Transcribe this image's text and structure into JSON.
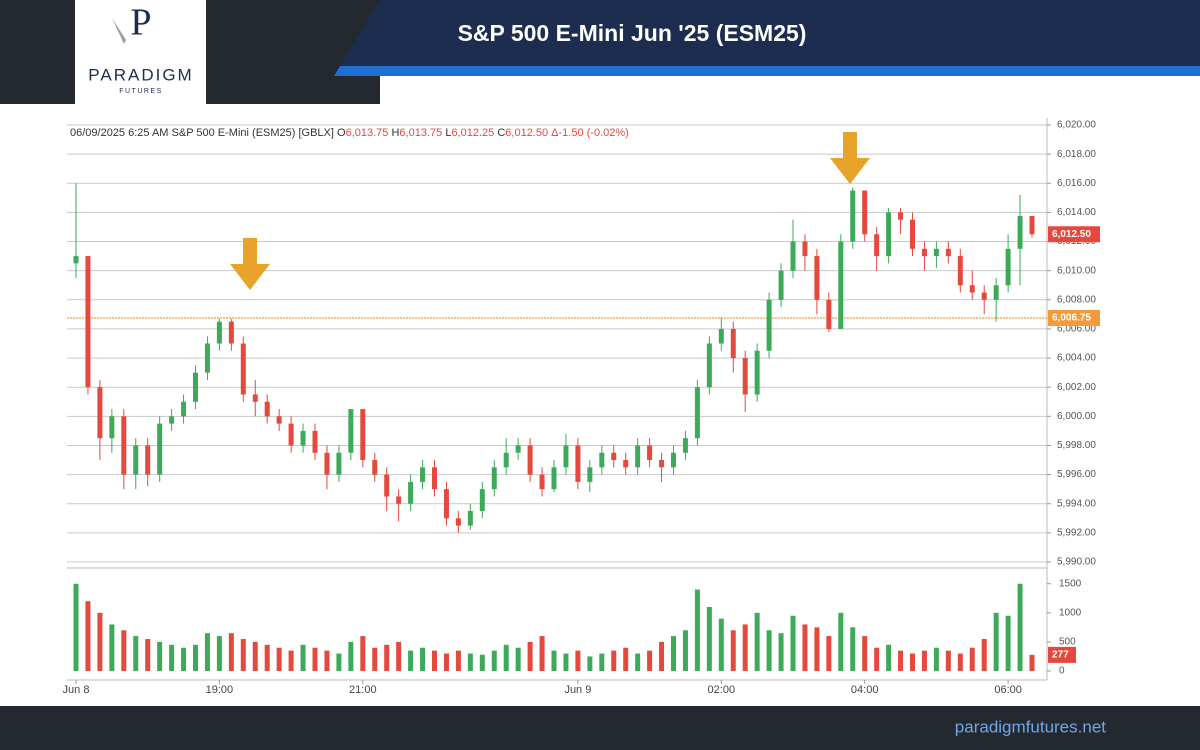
{
  "header": {
    "title": "S&P 500 E-Mini Jun '25 (ESM25)",
    "brand": "PARADIGM",
    "brand_sub": "FUTURES"
  },
  "footer": {
    "url": "paradigmfutures.net"
  },
  "chart_data": {
    "type": "candlestick",
    "legend_text": {
      "prefix": "06/09/2025  6:25 AM S&P 500 E-Mini (ESM25) [GBLX]",
      "items": [
        {
          "key": "O",
          "value": 6013.75,
          "label": "6,013.75"
        },
        {
          "key": "H",
          "value": 6013.75,
          "label": "6,013.75"
        },
        {
          "key": "L",
          "value": 6012.25,
          "label": "6,012.25"
        },
        {
          "key": "C",
          "value": 6012.5,
          "label": "6,012.50"
        }
      ],
      "change": "Δ-1.50 (-0.02%)"
    },
    "up_color": "#3daa5a",
    "down_color": "#e5483c",
    "categories": [
      "Jun 8",
      null,
      null,
      null,
      null,
      null,
      null,
      null,
      null,
      null,
      null,
      null,
      "19:00",
      null,
      null,
      null,
      null,
      null,
      null,
      null,
      null,
      null,
      null,
      null,
      "21:00",
      null,
      null,
      null,
      null,
      null,
      null,
      null,
      null,
      null,
      null,
      null,
      null,
      null,
      null,
      null,
      null,
      null,
      "Jun 9",
      null,
      null,
      null,
      null,
      null,
      null,
      null,
      null,
      null,
      null,
      null,
      "02:00",
      null,
      null,
      null,
      null,
      null,
      null,
      null,
      null,
      null,
      null,
      null,
      "04:00",
      null,
      null,
      null,
      null,
      null,
      null,
      null,
      null,
      null,
      null,
      null,
      "06:00",
      null,
      null
    ],
    "open": [
      6010.5,
      6011,
      6002,
      5998.5,
      6000,
      5996,
      5998,
      5996,
      5999.5,
      6000,
      6001,
      6003,
      6005,
      6006.5,
      6005,
      6001.5,
      6001,
      6000,
      5999.5,
      5998,
      5999,
      5997.5,
      5996,
      5997.5,
      6000.5,
      5997,
      5996,
      5994.5,
      5994,
      5995.5,
      5996.5,
      5995,
      5993,
      5992.5,
      5993.5,
      5995,
      5996.5,
      5997.5,
      5998,
      5996,
      5995,
      5996.5,
      5998,
      5995.5,
      5996.5,
      5997.5,
      5997,
      5996.5,
      5998,
      5997,
      5996.5,
      5997.5,
      5998.5,
      6002,
      6005,
      6006,
      6004,
      6001.5,
      6004.5,
      6008,
      6010,
      6012,
      6011,
      6008,
      6006,
      6012,
      6015.5,
      6012.5,
      6011,
      6014,
      6013.5,
      6011.5,
      6011,
      6011.5,
      6011,
      6009,
      6008.5,
      6008,
      6009,
      6011.5,
      6013.75
    ],
    "high": [
      6016,
      6011,
      6002.5,
      6000.5,
      6000.5,
      5998.5,
      5998.5,
      6000,
      6000.5,
      6001.5,
      6003.5,
      6005.5,
      6006.7,
      6006.7,
      6005.5,
      6002.5,
      6001.5,
      6000.5,
      6000,
      5999.5,
      5999.5,
      5998,
      5998,
      6000.5,
      6000.5,
      5997.5,
      5996.5,
      5995,
      5996,
      5997,
      5997,
      5995.5,
      5993.5,
      5994,
      5995.5,
      5997,
      5998.5,
      5998.5,
      5998.5,
      5996.5,
      5997,
      5998.8,
      5998.5,
      5997,
      5998,
      5998,
      5997.5,
      5998.5,
      5998.5,
      5997.5,
      5998,
      5999,
      6002.5,
      6005.5,
      6006.8,
      6006.5,
      6004.5,
      6005,
      6008.5,
      6010.5,
      6013.5,
      6012.5,
      6011.5,
      6008.5,
      6012.5,
      6015.7,
      6015.5,
      6013,
      6014.3,
      6014.3,
      6014,
      6012,
      6012,
      6012,
      6011.5,
      6010,
      6009,
      6009.5,
      6012.5,
      6015.2,
      6013.75
    ],
    "low": [
      6009.5,
      6001.5,
      5997,
      5997.5,
      5995,
      5995,
      5995.2,
      5995.5,
      5999,
      5999.5,
      6000.5,
      6002.5,
      6004.5,
      6004.5,
      6001,
      6000,
      5999.5,
      5999,
      5997.5,
      5997.5,
      5997,
      5995,
      5995.5,
      5997,
      5996.5,
      5995.5,
      5993.5,
      5992.8,
      5993.5,
      5995,
      5994.5,
      5992.5,
      5992,
      5992.2,
      5993,
      5994.5,
      5996,
      5997,
      5995.5,
      5994.5,
      5994.8,
      5996,
      5995,
      5994.8,
      5996,
      5996.5,
      5996,
      5996,
      5996.5,
      5995.5,
      5996,
      5997,
      5998,
      6001.5,
      6004.5,
      6003,
      6000.3,
      6001,
      6004,
      6007.5,
      6009.5,
      6010,
      6007,
      6005.8,
      6006,
      6011.5,
      6012,
      6010,
      6010.5,
      6012.5,
      6011,
      6010,
      6010.2,
      6010.5,
      6008.5,
      6008,
      6007,
      6006.5,
      6008.5,
      6009,
      6012.25
    ],
    "close": [
      6011,
      6002,
      5998.5,
      6000,
      5996,
      5998,
      5996,
      5999.5,
      6000,
      6001,
      6003,
      6005,
      6006.5,
      6005,
      6001.5,
      6001,
      6000,
      5999.5,
      5998,
      5999,
      5997.5,
      5996,
      5997.5,
      6000.5,
      5997,
      5996,
      5994.5,
      5994,
      5995.5,
      5996.5,
      5995,
      5993,
      5992.5,
      5993.5,
      5995,
      5996.5,
      5997.5,
      5998,
      5996,
      5995,
      5996.5,
      5998,
      5995.5,
      5996.5,
      5997.5,
      5997,
      5996.5,
      5998,
      5997,
      5996.5,
      5997.5,
      5998.5,
      6002,
      6005,
      6006,
      6004,
      6001.5,
      6004.5,
      6008,
      6010,
      6012,
      6011,
      6008,
      6006,
      6012,
      6015.5,
      6012.5,
      6011,
      6014,
      6013.5,
      6011.5,
      6011,
      6011.5,
      6011,
      6009,
      6008.5,
      6008,
      6009,
      6011.5,
      6013.75,
      6012.5
    ],
    "ylim": [
      5990,
      6020
    ],
    "yticks": [
      {
        "value": 5990,
        "label": "5,990.00"
      },
      {
        "value": 5992,
        "label": "5,992.00"
      },
      {
        "value": 5994,
        "label": "5,994.00"
      },
      {
        "value": 5996,
        "label": "5,996.00"
      },
      {
        "value": 5998,
        "label": "5,998.00"
      },
      {
        "value": 6000,
        "label": "6,000.00"
      },
      {
        "value": 6002,
        "label": "6,002.00"
      },
      {
        "value": 6004,
        "label": "6,004.00"
      },
      {
        "value": 6006,
        "label": "6,006.00"
      },
      {
        "value": 6008,
        "label": "6,008.00"
      },
      {
        "value": 6010,
        "label": "6,010.00"
      },
      {
        "value": 6012,
        "label": "6,012.00"
      },
      {
        "value": 6014,
        "label": "6,014.00"
      },
      {
        "value": 6016,
        "label": "6,016.00"
      },
      {
        "value": 6018,
        "label": "6,018.00"
      },
      {
        "value": 6020,
        "label": "6,020.00"
      }
    ],
    "grid": true,
    "last_price": {
      "value": 6012.5,
      "label": "6,012.50",
      "color": "#e5483c"
    },
    "level": {
      "value": 6006.75,
      "label": "6,006.75",
      "color": "#f39a3a"
    },
    "volume": {
      "values": [
        1500,
        1200,
        1000,
        800,
        700,
        600,
        550,
        500,
        450,
        400,
        450,
        650,
        600,
        650,
        550,
        500,
        450,
        400,
        350,
        450,
        400,
        350,
        300,
        500,
        600,
        400,
        450,
        500,
        350,
        400,
        350,
        300,
        350,
        300,
        280,
        350,
        450,
        400,
        500,
        600,
        350,
        300,
        350,
        250,
        300,
        350,
        400,
        300,
        350,
        500,
        600,
        700,
        1400,
        1100,
        900,
        700,
        800,
        1000,
        700,
        650,
        950,
        800,
        750,
        600,
        1000,
        750,
        600,
        400,
        450,
        350,
        300,
        350,
        400,
        350,
        300,
        400,
        550,
        1000,
        950,
        1500,
        277
      ],
      "ylim": [
        0,
        1650
      ],
      "yticks": [
        0,
        500,
        1000,
        1500
      ],
      "last_color": "#e5483c"
    }
  }
}
